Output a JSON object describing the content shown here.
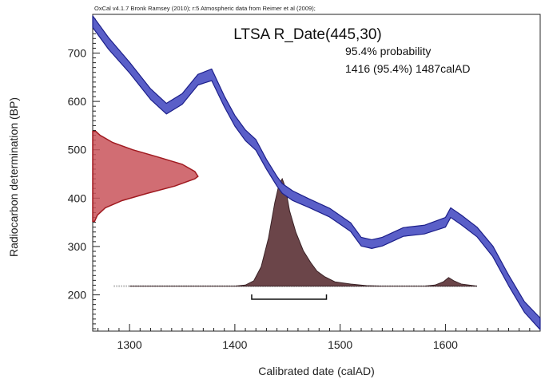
{
  "chart_data": {
    "type": "area",
    "software_note": "OxCal v4.1.7 Bronk Ramsey (2010); r:5  Atmospheric data from Reimer et al (2009);",
    "title": "LTSA R_Date(445,30)",
    "probability_label": "95.4% probability",
    "range_label": "1416 (95.4%) 1487calAD",
    "xlabel": "Calibrated date (calAD)",
    "ylabel": "Radiocarbon determination (BP)",
    "xlim": [
      1265,
      1690
    ],
    "ylim": [
      125,
      780
    ],
    "x_ticks": [
      1300,
      1400,
      1500,
      1600
    ],
    "y_ticks": [
      200,
      300,
      400,
      500,
      600,
      700
    ],
    "grid": false,
    "colors": {
      "calibration_fill": "#5a5fc8",
      "calibration_stroke": "#1c1f8a",
      "radiocarbon_fill": "#c9545a",
      "radiocarbon_stroke": "#a01a20",
      "posterior_fill": "#6b4549",
      "posterior_stroke": "#3a2226"
    },
    "series": [
      {
        "kind": "calibration_curve",
        "x": [
          1265,
          1280,
          1300,
          1320,
          1335,
          1350,
          1365,
          1378,
          1390,
          1400,
          1410,
          1420,
          1430,
          1440,
          1445,
          1455,
          1470,
          1490,
          1500,
          1510,
          1520,
          1530,
          1540,
          1560,
          1580,
          1600,
          1605,
          1615,
          1630,
          1645,
          1660,
          1675,
          1690
        ],
        "y": [
          765,
          720,
          670,
          615,
          585,
          605,
          645,
          655,
          600,
          560,
          530,
          510,
          470,
          435,
          420,
          405,
          390,
          370,
          355,
          340,
          310,
          305,
          310,
          330,
          335,
          350,
          370,
          355,
          330,
          290,
          230,
          175,
          140
        ],
        "band": [
          12,
          12,
          11,
          11,
          11,
          11,
          11,
          12,
          11,
          11,
          11,
          11,
          10,
          10,
          10,
          10,
          9,
          9,
          9,
          9,
          9,
          9,
          9,
          9,
          9,
          10,
          10,
          10,
          10,
          11,
          11,
          11,
          12
        ]
      },
      {
        "kind": "radiocarbon_measurement",
        "mean": 445,
        "sd": 30,
        "bp": [
          352,
          365,
          380,
          395,
          410,
          425,
          440,
          445,
          455,
          470,
          485,
          500,
          515,
          530,
          538
        ],
        "relative_probability": [
          0.018,
          0.045,
          0.12,
          0.28,
          0.52,
          0.78,
          0.97,
          1.0,
          0.97,
          0.85,
          0.62,
          0.38,
          0.19,
          0.07,
          0.03
        ]
      },
      {
        "kind": "calibrated_probability",
        "x": [
          1300,
          1400,
          1410,
          1418,
          1425,
          1432,
          1438,
          1442,
          1445,
          1448,
          1452,
          1458,
          1465,
          1472,
          1478,
          1485,
          1495,
          1510,
          1525,
          1540,
          1580,
          1590,
          1598,
          1603,
          1608,
          1615,
          1630
        ],
        "y": [
          0,
          0,
          0.01,
          0.05,
          0.18,
          0.45,
          0.78,
          0.95,
          1.0,
          0.92,
          0.7,
          0.5,
          0.33,
          0.22,
          0.14,
          0.09,
          0.04,
          0.02,
          0.005,
          0,
          0,
          0.01,
          0.04,
          0.08,
          0.05,
          0.02,
          0
        ]
      }
    ],
    "hpd_range": {
      "label": "95.4%",
      "from": 1416,
      "to": 1487
    }
  }
}
